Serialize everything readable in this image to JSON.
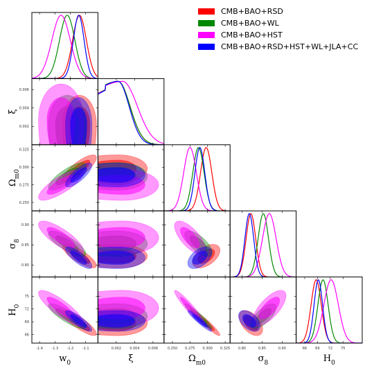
{
  "chart_data": {
    "type": "triangle",
    "parameters": [
      {
        "key": "w0",
        "name": "w",
        "sub": "0",
        "range": [
          -1.45,
          -1.02
        ],
        "ticks": [
          -1.4,
          -1.3,
          -1.2,
          -1.1
        ],
        "tick_labels": [
          "-1.4",
          "-1.3",
          "-1.2",
          "-1.1"
        ]
      },
      {
        "key": "xi",
        "name": "ξ",
        "sub": "",
        "range": [
          0.0,
          0.0072
        ],
        "ticks": [
          0.002,
          0.004,
          0.006
        ],
        "tick_labels": [
          "0.002",
          "0.004",
          "0.006"
        ]
      },
      {
        "key": "Om0",
        "name": "Ω",
        "sub": "m0",
        "range": [
          0.238,
          0.332
        ],
        "ticks": [
          0.25,
          0.275,
          0.3,
          0.325
        ],
        "tick_labels": [
          "0.250",
          "0.275",
          "0.300",
          "0.325"
        ]
      },
      {
        "key": "s8",
        "name": "σ",
        "sub": "8",
        "range": [
          0.77,
          0.935
        ],
        "ticks": [
          0.8,
          0.85,
          0.9
        ],
        "tick_labels": [
          "0.80",
          "0.85",
          "0.90"
        ]
      },
      {
        "key": "H0",
        "name": "H",
        "sub": "0",
        "range": [
          64.0,
          79.5
        ],
        "ticks": [
          66,
          69,
          72,
          75
        ],
        "tick_labels": [
          "66",
          "69",
          "72",
          "75"
        ]
      }
    ],
    "series": [
      {
        "name": "CMB+BAO+RSD",
        "color": "#ff0000",
        "mean": {
          "w0": -1.14,
          "xi": 0.0022,
          "Om0": 0.298,
          "s8": 0.822,
          "H0": 68.7
        },
        "sigma": {
          "w0": 0.045,
          "xi": 0.0013,
          "Om0": 0.008,
          "s8": 0.012,
          "H0": 1.2
        },
        "corr": {
          "w0-Om0": 0.8,
          "w0-s8": -0.8,
          "w0-H0": -0.85,
          "Om0-s8": 0.5,
          "Om0-H0": -0.95,
          "s8-H0": -0.5
        }
      },
      {
        "name": "CMB+BAO+WL",
        "color": "#008800",
        "mean": {
          "w0": -1.22,
          "xi": 0.0022,
          "Om0": 0.287,
          "s8": 0.853,
          "H0": 70.3
        },
        "sigma": {
          "w0": 0.05,
          "xi": 0.0013,
          "Om0": 0.008,
          "s8": 0.013,
          "H0": 1.2
        },
        "corr": {
          "w0-Om0": 0.8,
          "w0-s8": -0.8,
          "w0-H0": -0.85,
          "Om0-s8": -0.7,
          "Om0-H0": -0.95,
          "s8-H0": 0.7
        }
      },
      {
        "name": "CMB+BAO+HST",
        "color": "#ff00ff",
        "mean": {
          "w0": -1.26,
          "xi": 0.0027,
          "Om0": 0.275,
          "s8": 0.868,
          "H0": 72.2
        },
        "sigma": {
          "w0": 0.06,
          "xi": 0.0016,
          "Om0": 0.009,
          "s8": 0.017,
          "H0": 1.7
        },
        "corr": {
          "w0-Om0": 0.8,
          "w0-s8": -0.8,
          "w0-H0": -0.85,
          "Om0-s8": -0.7,
          "Om0-H0": -0.95,
          "s8-H0": 0.7
        }
      },
      {
        "name": "CMB+BAO+RSD+HST+WL+JLA+CC",
        "color": "#0000ff",
        "mean": {
          "w0": -1.145,
          "xi": 0.0022,
          "Om0": 0.289,
          "s8": 0.818,
          "H0": 69.2
        },
        "sigma": {
          "w0": 0.035,
          "xi": 0.0012,
          "Om0": 0.007,
          "s8": 0.011,
          "H0": 1.0
        },
        "corr": {
          "w0-Om0": 0.8,
          "w0-s8": -0.8,
          "w0-H0": -0.85,
          "Om0-s8": 0.5,
          "Om0-H0": -0.95,
          "s8-H0": -0.5
        }
      }
    ],
    "legend_position": "top-right"
  }
}
